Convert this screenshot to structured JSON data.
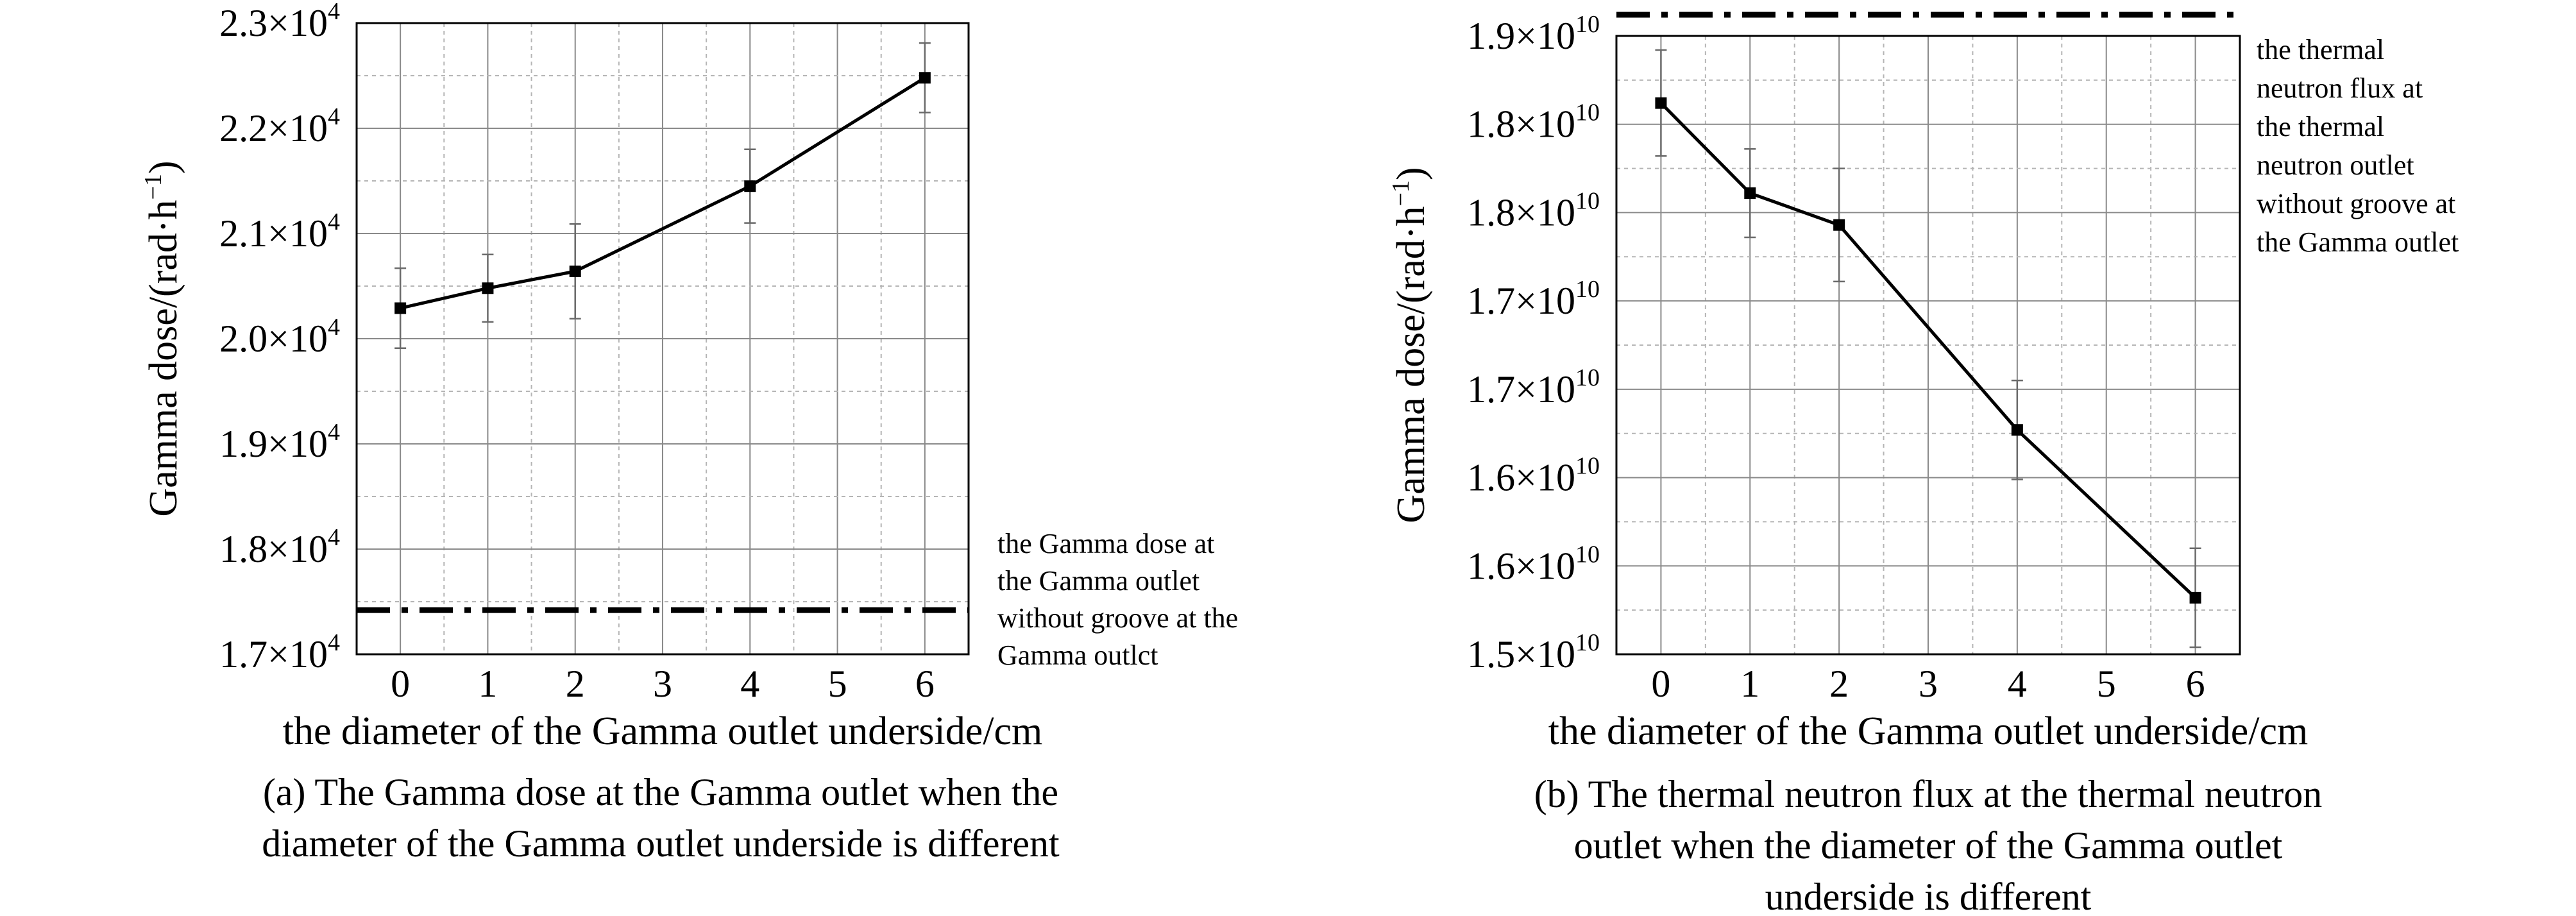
{
  "chart_data": [
    {
      "type": "line",
      "categories": [
        "0",
        "1",
        "2",
        "3",
        "4",
        "5",
        "6"
      ],
      "x": [
        0,
        1,
        2,
        4,
        6
      ],
      "series": [
        {
          "values": [
            20290,
            20480,
            20640,
            21450,
            22480
          ],
          "error": [
            380,
            320,
            450,
            350,
            330
          ]
        }
      ],
      "reference": {
        "value": 17420,
        "label": [
          "the Gamma dose at",
          "the Gamma outlet",
          "without groove at the",
          "Gamma outlct"
        ]
      },
      "yticks": [
        {
          "value": 17000,
          "mantissa": "1.7",
          "exp": "4"
        },
        {
          "value": 18000,
          "mantissa": "1.8",
          "exp": "4"
        },
        {
          "value": 19000,
          "mantissa": "1.9",
          "exp": "4"
        },
        {
          "value": 20000,
          "mantissa": "2.0",
          "exp": "4"
        },
        {
          "value": 21000,
          "mantissa": "2.1",
          "exp": "4"
        },
        {
          "value": 22000,
          "mantissa": "2.2",
          "exp": "4"
        },
        {
          "value": 23000,
          "mantissa": "2.3",
          "exp": "4"
        }
      ],
      "ylim": [
        17000,
        23000
      ],
      "ylabel_text": "Gamma dose/(rad·h",
      "ylabel_sup": "−1",
      "ylabel_end": ")",
      "xlabel": "the diameter of the Gamma outlet underside/cm",
      "caption": [
        "(a) The Gamma dose at the Gamma outlet when the",
        "diameter of the Gamma outlet underside is different"
      ],
      "grid": true
    },
    {
      "type": "line",
      "categories": [
        "0",
        "1",
        "2",
        "3",
        "4",
        "5",
        "6"
      ],
      "x": [
        0,
        1,
        2,
        4,
        6
      ],
      "series": [
        {
          "values": [
            18120000000,
            17610000000,
            17430000000,
            16270000000,
            15320000000
          ],
          "error": [
            300000000,
            250000000,
            320000000,
            280000000,
            280000000
          ]
        }
      ],
      "reference": {
        "value": 18620000000,
        "label": [
          "the thermal",
          "neutron flux at",
          "the thermal",
          "neutron outlet",
          "without groove at",
          "the Gamma outlet"
        ]
      },
      "yticks": [
        {
          "value": 15000000000,
          "mantissa": "1.5",
          "exp": "10"
        },
        {
          "value": 15500000000,
          "mantissa": "1.6",
          "exp": "10"
        },
        {
          "value": 16000000000,
          "mantissa": "1.6",
          "exp": "10"
        },
        {
          "value": 16500000000,
          "mantissa": "1.7",
          "exp": "10"
        },
        {
          "value": 17000000000,
          "mantissa": "1.7",
          "exp": "10"
        },
        {
          "value": 17500000000,
          "mantissa": "1.8",
          "exp": "10"
        },
        {
          "value": 18000000000,
          "mantissa": "1.8",
          "exp": "10"
        },
        {
          "value": 18500000000,
          "mantissa": "1.9",
          "exp": "10"
        }
      ],
      "ylim": [
        15000000000,
        18500000000
      ],
      "ylabel_text": "Gamma dose/(rad·h",
      "ylabel_sup": "−1",
      "ylabel_end": ")",
      "xlabel": "the diameter of the Gamma outlet underside/cm",
      "caption": [
        "(b) The thermal neutron flux at the thermal neutron",
        "outlet when the diameter of the Gamma outlet",
        "underside is different"
      ],
      "grid": true
    }
  ]
}
